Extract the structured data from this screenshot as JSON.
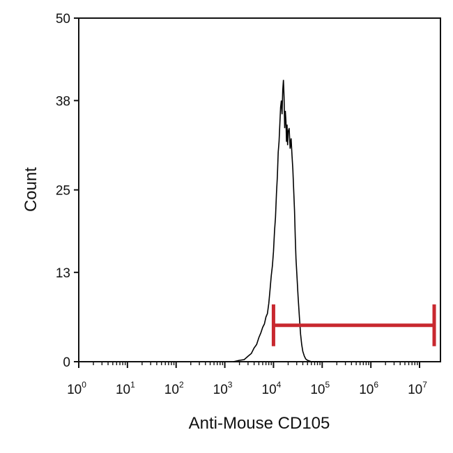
{
  "chart_data": {
    "type": "line",
    "xlabel": "Anti-Mouse CD105",
    "ylabel": "Count",
    "xscale": "log",
    "xlim": [
      1,
      20000000
    ],
    "ylim": [
      0,
      50
    ],
    "yticks": [
      "0",
      "13",
      "25",
      "38",
      "50"
    ],
    "xticks": [
      {
        "base": "10",
        "exp": "0"
      },
      {
        "base": "10",
        "exp": "1"
      },
      {
        "base": "10",
        "exp": "2"
      },
      {
        "base": "10",
        "exp": "3"
      },
      {
        "base": "10",
        "exp": "4"
      },
      {
        "base": "10",
        "exp": "5"
      },
      {
        "base": "10",
        "exp": "6"
      },
      {
        "base": "10",
        "exp": "7"
      }
    ],
    "grid": false,
    "series": [
      {
        "color": "#000000",
        "x": [
          1500,
          2000,
          2500,
          3000,
          3500,
          4000,
          4500,
          5000,
          5500,
          6000,
          6500,
          7000,
          7500,
          8000,
          8500,
          9000,
          9500,
          10000,
          10500,
          11000,
          11500,
          12000,
          12500,
          13000,
          13500,
          14000,
          14500,
          15000,
          15500,
          16000,
          16500,
          17000,
          17500,
          18000,
          18500,
          19000,
          19500,
          20000,
          21000,
          22000,
          23000,
          24000,
          25000,
          26000,
          27000,
          28000,
          29000,
          30000,
          32000,
          34000,
          36000,
          38000,
          40000,
          43000,
          46000,
          50000,
          55000,
          60000,
          70000,
          80000,
          100000
        ],
        "y": [
          0,
          0.2,
          0.3,
          0.8,
          1.2,
          2.0,
          2.5,
          3.5,
          4.2,
          5.0,
          5.5,
          6.5,
          7.0,
          8.5,
          10.5,
          12.5,
          14.0,
          16.0,
          19.0,
          21.0,
          24.5,
          27.0,
          30.5,
          32.0,
          34.5,
          37.0,
          38.0,
          36.0,
          39.5,
          41.0,
          38.5,
          34.0,
          36.5,
          35.0,
          32.0,
          34.5,
          31.5,
          33.5,
          34.0,
          31.0,
          32.5,
          30.0,
          28.0,
          25.0,
          22.0,
          18.0,
          15.0,
          13.0,
          9.5,
          6.5,
          4.0,
          2.5,
          1.5,
          0.8,
          0.4,
          0.2,
          0.1,
          0,
          0,
          0,
          0
        ]
      }
    ],
    "annotations": [
      {
        "type": "gate",
        "color": "#c8282f",
        "x_start": 10000,
        "x_end": 20000000,
        "y": 5.3
      }
    ]
  }
}
